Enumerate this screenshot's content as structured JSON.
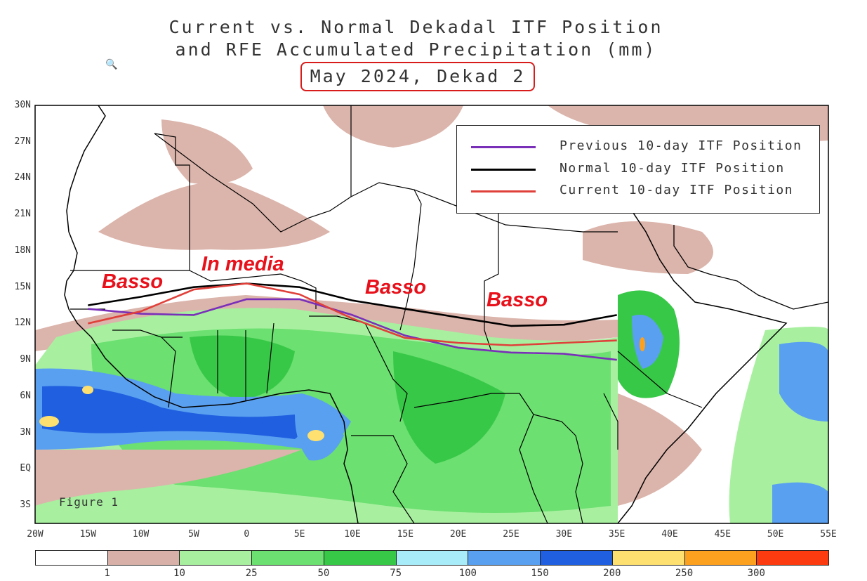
{
  "title": {
    "line1": "Current vs. Normal Dekadal ITF Position",
    "line2": "and RFE Accumulated Precipitation (mm)",
    "date": "May 2024, Dekad 2"
  },
  "legend": [
    {
      "label": "Previous 10-day ITF Position",
      "color": "#7a2fb8"
    },
    {
      "label": "Normal 10-day ITF Position",
      "color": "#000000"
    },
    {
      "label": "Current 10-day ITF Position",
      "color": "#e0403a"
    }
  ],
  "annotations": [
    "Basso",
    "In media",
    "Basso",
    "Basso"
  ],
  "figure_label": "Figure 1",
  "lat_labels": [
    "30N",
    "27N",
    "24N",
    "21N",
    "18N",
    "15N",
    "12N",
    "9N",
    "6N",
    "3N",
    "EQ",
    "3S"
  ],
  "lon_labels": [
    "20W",
    "15W",
    "10W",
    "5W",
    "0",
    "5E",
    "10E",
    "15E",
    "20E",
    "25E",
    "30E",
    "35E",
    "40E",
    "45E",
    "50E",
    "55E"
  ],
  "colorbar": {
    "labels": [
      "1",
      "10",
      "25",
      "50",
      "75",
      "100",
      "150",
      "200",
      "250",
      "300"
    ],
    "colors": [
      "#ffffff",
      "#d8b0a8",
      "#a8f0a0",
      "#6ce070",
      "#38c848",
      "#a8ecfa",
      "#5aa0f0",
      "#2060e0",
      "#fde070",
      "#fca020",
      "#fc3c10"
    ]
  },
  "itf_lines": {
    "previous": [
      [
        -15,
        13.2
      ],
      [
        -10,
        12.8
      ],
      [
        -5,
        12.7
      ],
      [
        0,
        14
      ],
      [
        5,
        14
      ],
      [
        10,
        12.7
      ],
      [
        15,
        11
      ],
      [
        20,
        10
      ],
      [
        25,
        9.6
      ],
      [
        30,
        9.5
      ],
      [
        35,
        9
      ]
    ],
    "normal": [
      [
        -15,
        13.5
      ],
      [
        -10,
        14.2
      ],
      [
        -5,
        15
      ],
      [
        0,
        15.3
      ],
      [
        5,
        15
      ],
      [
        10,
        13.9
      ],
      [
        15,
        13.2
      ],
      [
        20,
        12.5
      ],
      [
        25,
        11.8
      ],
      [
        30,
        11.9
      ],
      [
        35,
        12.7
      ]
    ],
    "current": [
      [
        -15,
        12
      ],
      [
        -10,
        13
      ],
      [
        -5,
        14.8
      ],
      [
        0,
        15.3
      ],
      [
        5,
        14.4
      ],
      [
        10,
        12.4
      ],
      [
        15,
        10.8
      ],
      [
        20,
        10.4
      ],
      [
        25,
        10.2
      ],
      [
        30,
        10.4
      ],
      [
        35,
        10.6
      ]
    ]
  }
}
